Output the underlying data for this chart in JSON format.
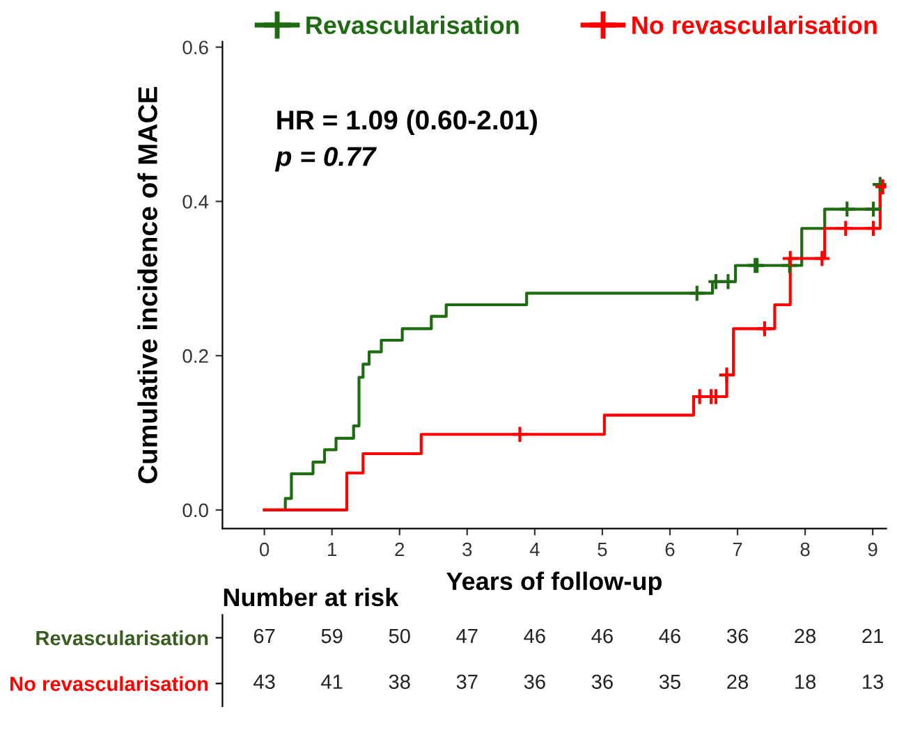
{
  "chart_data": [
    {
      "type": "step",
      "ylabel": "Cumulative incidence of MACE",
      "xlabel": "Years of follow-up",
      "annotations": [
        "HR = 1.09 (0.60-2.01)",
        "p = 0.77"
      ],
      "xlim": [
        -0.62,
        9.2
      ],
      "xticks": [
        0,
        1,
        2,
        3,
        4,
        5,
        6,
        7,
        8,
        9
      ],
      "ylim": [
        -0.024,
        0.607
      ],
      "yticks": [
        {
          "value": 0,
          "label": "0.0"
        },
        0.2,
        0.4,
        0.6
      ],
      "legend": "top",
      "grid": false,
      "line_style": "solid",
      "series": [
        {
          "name": "Revascularisation",
          "color": "#1e6b12",
          "x": [
            0,
            0.31,
            0.4,
            0.72,
            0.89,
            1.06,
            1.32,
            1.4,
            1.46,
            1.55,
            1.73,
            2.04,
            2.47,
            2.69,
            3.88,
            6.63,
            6.97,
            7.95,
            8.29,
            9.11,
            9.18
          ],
          "values": [
            0,
            0.015,
            0.047,
            0.062,
            0.078,
            0.093,
            0.109,
            0.172,
            0.189,
            0.205,
            0.22,
            0.235,
            0.251,
            0.266,
            0.281,
            0.296,
            0.317,
            0.365,
            0.39,
            0.422,
            0.422
          ]
        },
        {
          "name": "No revascularisation",
          "color": "#ff0000",
          "x": [
            0,
            1.22,
            1.46,
            2.32,
            5.03,
            6.35,
            6.84,
            6.94,
            7.55,
            7.78,
            8.29,
            9.11,
            9.18
          ],
          "values": [
            0,
            0.048,
            0.073,
            0.098,
            0.123,
            0.147,
            0.175,
            0.235,
            0.266,
            0.326,
            0.365,
            0.419,
            0.419
          ]
        },
        {
          "type": "scatter",
          "marker": "cross",
          "color": "#1e6b12",
          "x": [
            6.4,
            6.68,
            6.86,
            7.26,
            7.29,
            7.77,
            8.62,
            9.01,
            9.11
          ],
          "values": [
            0.281,
            0.296,
            0.296,
            0.317,
            0.317,
            0.317,
            0.39,
            0.39,
            0.422
          ]
        },
        {
          "type": "scatter",
          "marker": "cross",
          "color": "#ff0000",
          "x": [
            3.78,
            6.44,
            6.61,
            6.68,
            6.84,
            7.4,
            7.78,
            8.25,
            8.6,
            9.01,
            9.15
          ],
          "values": [
            0.098,
            0.147,
            0.147,
            0.147,
            0.175,
            0.235,
            0.326,
            0.326,
            0.365,
            0.365,
            0.419
          ]
        }
      ]
    },
    {
      "type": "heatmap",
      "title": "Number at risk",
      "categories": [
        null,
        null,
        null,
        null,
        null,
        null,
        null,
        null,
        null,
        null
      ],
      "data_labels": true,
      "y_categories": [
        "Revascularisation",
        "No revascularisation"
      ],
      "cells": [
        [
          67,
          59,
          50,
          47,
          46,
          46,
          46,
          36,
          28,
          21
        ],
        [
          43,
          41,
          38,
          37,
          36,
          36,
          35,
          28,
          18,
          13
        ]
      ]
    }
  ]
}
